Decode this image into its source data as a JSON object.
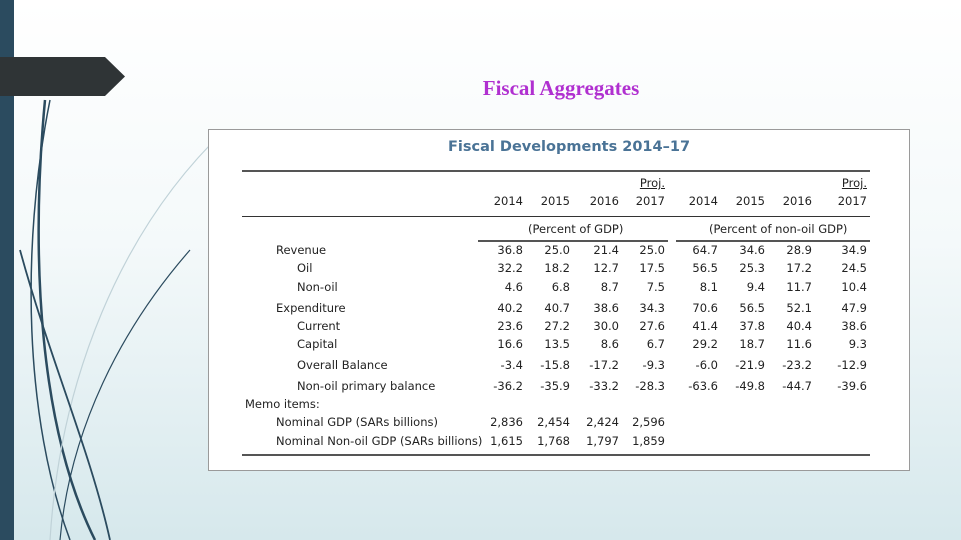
{
  "slide": {
    "title": "Fiscal Aggregates"
  },
  "table": {
    "title": "Fiscal Developments 2014–17",
    "proj_label": "Proj.",
    "years": [
      "2014",
      "2015",
      "2016",
      "2017"
    ],
    "group_left": "(Percent of GDP)",
    "group_right": "(Percent of non-oil GDP)",
    "rows": [
      {
        "label": "Revenue",
        "indent": 1,
        "gdp": [
          "36.8",
          "25.0",
          "21.4",
          "25.0"
        ],
        "nonoil": [
          "64.7",
          "34.6",
          "28.9",
          "34.9"
        ]
      },
      {
        "label": "Oil",
        "indent": 2,
        "gdp": [
          "32.2",
          "18.2",
          "12.7",
          "17.5"
        ],
        "nonoil": [
          "56.5",
          "25.3",
          "17.2",
          "24.5"
        ]
      },
      {
        "label": "Non-oil",
        "indent": 2,
        "gdp": [
          "4.6",
          "6.8",
          "8.7",
          "7.5"
        ],
        "nonoil": [
          "8.1",
          "9.4",
          "11.7",
          "10.4"
        ]
      },
      {
        "label": "Expenditure",
        "indent": 1,
        "gdp": [
          "40.2",
          "40.7",
          "38.6",
          "34.3"
        ],
        "nonoil": [
          "70.6",
          "56.5",
          "52.1",
          "47.9"
        ]
      },
      {
        "label": "Current",
        "indent": 2,
        "gdp": [
          "23.6",
          "27.2",
          "30.0",
          "27.6"
        ],
        "nonoil": [
          "41.4",
          "37.8",
          "40.4",
          "38.6"
        ]
      },
      {
        "label": "Capital",
        "indent": 2,
        "gdp": [
          "16.6",
          "13.5",
          "8.6",
          "6.7"
        ],
        "nonoil": [
          "29.2",
          "18.7",
          "11.6",
          "9.3"
        ]
      },
      {
        "label": "Overall Balance",
        "indent": 2,
        "gdp": [
          "-3.4",
          "-15.8",
          "-17.2",
          "-9.3"
        ],
        "nonoil": [
          "-6.0",
          "-21.9",
          "-23.2",
          "-12.9"
        ]
      },
      {
        "label": "Non-oil primary balance",
        "indent": 2,
        "gdp": [
          "-36.2",
          "-35.9",
          "-33.2",
          "-28.3"
        ],
        "nonoil": [
          "-63.6",
          "-49.8",
          "-44.7",
          "-39.6"
        ]
      },
      {
        "label": "Memo items:",
        "indent": 0,
        "gdp": [],
        "nonoil": []
      },
      {
        "label": "Nominal GDP (SARs billions)",
        "indent": 1,
        "gdp": [
          "2,836",
          "2,454",
          "2,424",
          "2,596"
        ],
        "nonoil": []
      },
      {
        "label": "Nominal Non-oil GDP (SARs billions)",
        "indent": 1,
        "gdp": [
          "1,615",
          "1,768",
          "1,797",
          "1,859"
        ],
        "nonoil": []
      }
    ]
  }
}
